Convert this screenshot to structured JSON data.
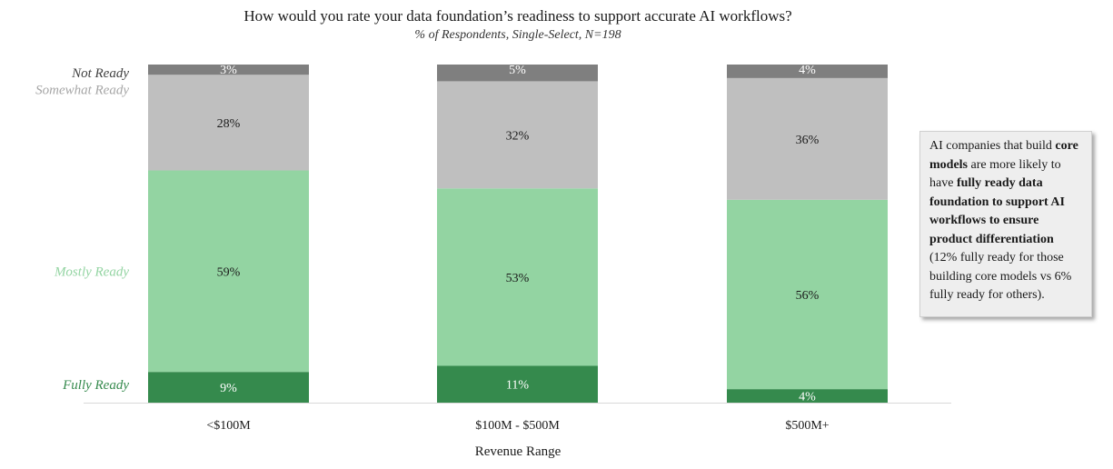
{
  "chart_data": {
    "type": "bar",
    "stacked": true,
    "title": "How would you rate your data foundation’s readiness to support accurate AI workflows?",
    "subtitle": "% of Respondents, Single-Select, N=198",
    "xlabel": "Revenue Range",
    "ylabel": "",
    "ylim": [
      0,
      100
    ],
    "legend_placement": "left",
    "grid": false,
    "categories": [
      "<$100M",
      "$100M - $500M",
      "$500M+"
    ],
    "series": [
      {
        "name": "Fully Ready",
        "values": [
          9,
          11,
          4
        ],
        "labels": [
          "9%",
          "11%",
          "4%"
        ],
        "color": "#358a4d",
        "text_color": "#ffffff",
        "legend_color": "#358a4d"
      },
      {
        "name": "Mostly Ready",
        "values": [
          59,
          53,
          56
        ],
        "labels": [
          "59%",
          "53%",
          "56%"
        ],
        "color": "#93d4a2",
        "text_color": "#1a1a1a",
        "legend_color": "#93d4a2"
      },
      {
        "name": "Somewhat Ready",
        "values": [
          28,
          32,
          36
        ],
        "labels": [
          "28%",
          "32%",
          "36%"
        ],
        "color": "#bfbfbf",
        "text_color": "#1a1a1a",
        "legend_color": "#a6a6a6"
      },
      {
        "name": "Not Ready",
        "values": [
          3,
          5,
          4
        ],
        "labels": [
          "3%",
          "5%",
          "4%"
        ],
        "color": "#7f7f7f",
        "text_color": "#ffffff",
        "legend_color": "#404040"
      }
    ]
  },
  "callout": {
    "p1": "AI companies that build ",
    "b1": "core models",
    "p2": " are more likely to have ",
    "b2": "fully ready data foundation to support AI workflows to ensure product differentiation",
    "p3": " (12% fully ready for those building core models vs 6% fully ready for others)."
  }
}
